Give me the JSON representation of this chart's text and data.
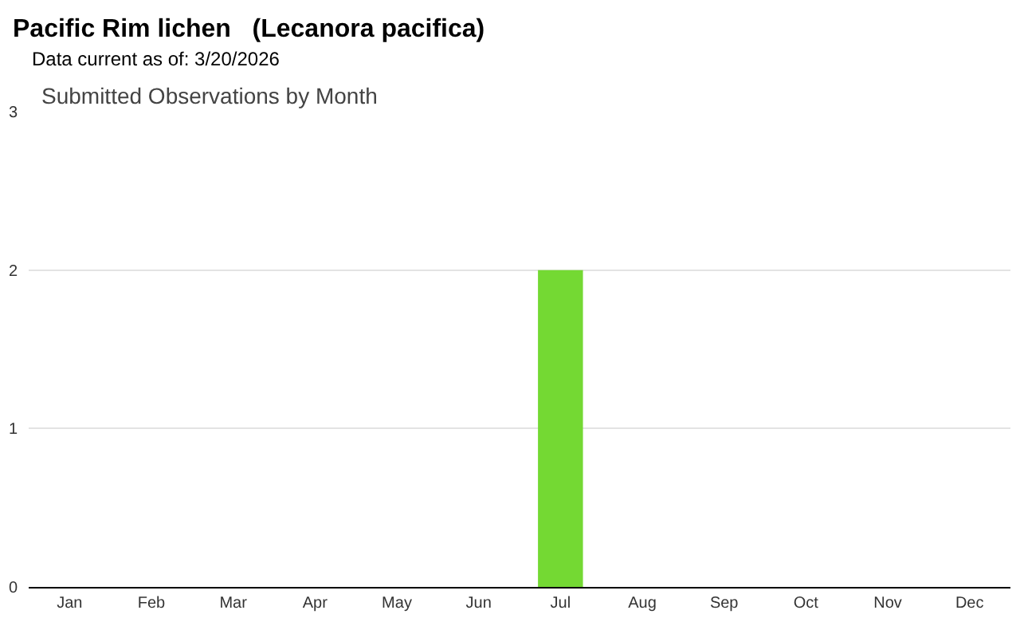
{
  "chart_data": {
    "type": "bar",
    "title": "Pacific Rim lichen   (Lecanora pacifica)",
    "subtitle": "Data current as of: 3/20/2026",
    "annotations": [
      "Submitted Observations by Month"
    ],
    "categories": [
      "Jan",
      "Feb",
      "Mar",
      "Apr",
      "May",
      "Jun",
      "Jul",
      "Aug",
      "Sep",
      "Oct",
      "Nov",
      "Dec"
    ],
    "values": [
      0,
      0,
      0,
      0,
      0,
      0,
      2,
      0,
      0,
      0,
      0,
      0
    ],
    "color": "#74d933",
    "ylim": [
      0,
      3
    ],
    "yticks": [
      0,
      1,
      2,
      3
    ],
    "grid": "y"
  }
}
